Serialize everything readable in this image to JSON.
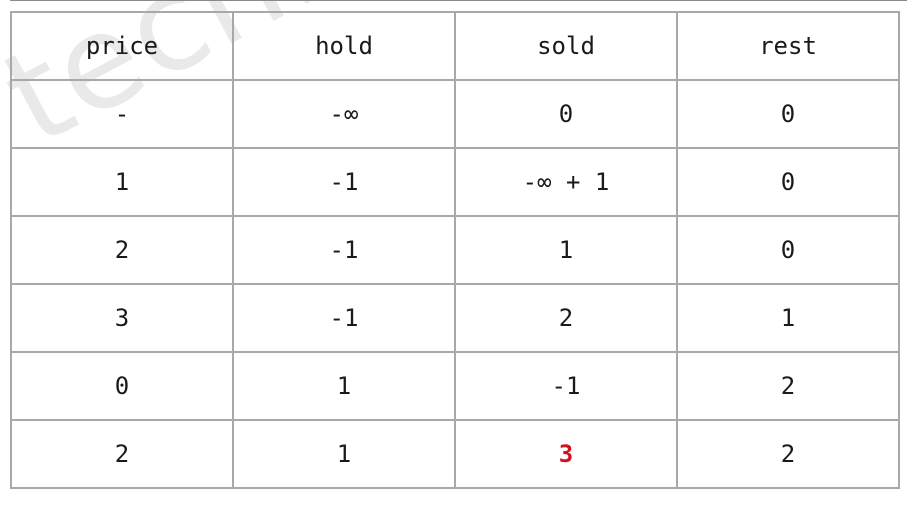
{
  "watermark": "techroad.com",
  "accent_color": "#d4121f",
  "table": {
    "headers": [
      "price",
      "hold",
      "sold",
      "rest"
    ],
    "rows": [
      [
        "-",
        "-∞",
        "0",
        "0"
      ],
      [
        "1",
        "-1",
        "-∞ + 1",
        "0"
      ],
      [
        "2",
        "-1",
        "1",
        "0"
      ],
      [
        "3",
        "-1",
        "2",
        "1"
      ],
      [
        "0",
        "1",
        "-1",
        "2"
      ],
      [
        "2",
        "1",
        "3",
        "2"
      ]
    ],
    "highlighted_cell": {
      "row": 5,
      "col": 2
    }
  }
}
